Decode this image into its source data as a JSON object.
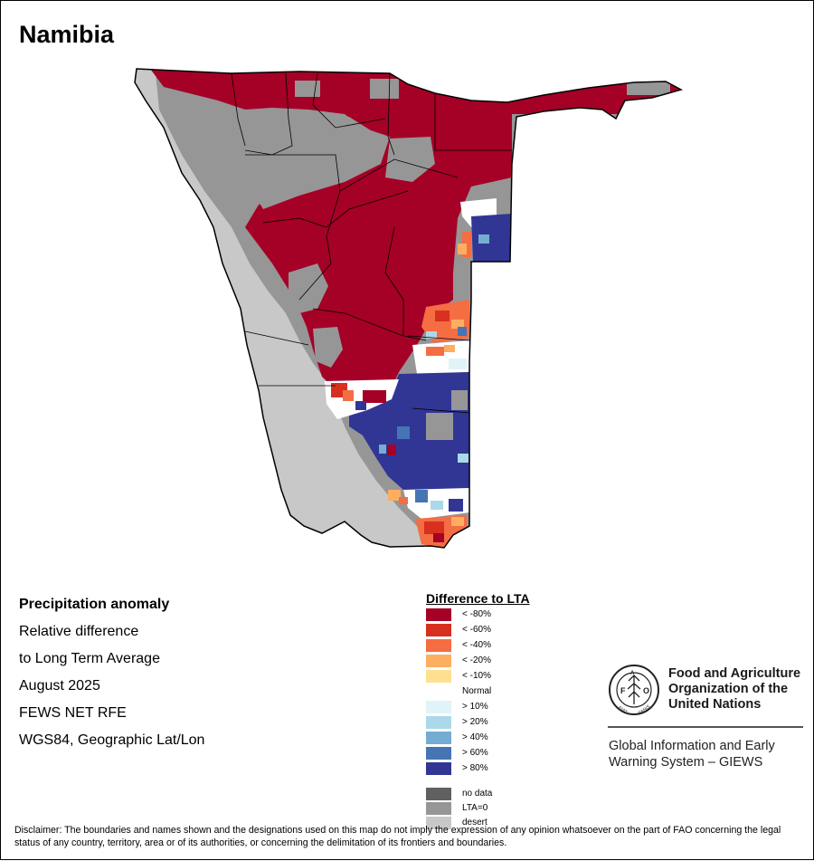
{
  "map": {
    "title": "Namibia",
    "info_lines": [
      "Precipitation anomaly",
      "Relative difference",
      "to Long Term Average",
      "August 2025",
      "FEWS NET RFE",
      "WGS84, Geographic Lat/Lon"
    ]
  },
  "legend": {
    "title": "Difference to LTA",
    "items": [
      {
        "label": "< -80%",
        "color": "#a50026"
      },
      {
        "label": "< -60%",
        "color": "#d7301f"
      },
      {
        "label": "< -40%",
        "color": "#f46d43"
      },
      {
        "label": "< -20%",
        "color": "#fdae61"
      },
      {
        "label": "< -10%",
        "color": "#fee090"
      },
      {
        "label": "Normal",
        "color": "#ffffff"
      },
      {
        "label": "> 10%",
        "color": "#e0f3f8"
      },
      {
        "label": "> 20%",
        "color": "#abd9e9"
      },
      {
        "label": "> 40%",
        "color": "#74add1"
      },
      {
        "label": "> 60%",
        "color": "#4575b4"
      },
      {
        "label": "> 80%",
        "color": "#313695"
      }
    ],
    "extra_items": [
      {
        "label": "no data",
        "color": "#606060"
      },
      {
        "label": "LTA=0",
        "color": "#969696"
      },
      {
        "label": "desert",
        "color": "#c8c8c8"
      }
    ]
  },
  "branding": {
    "org_name_lines": [
      "Food and Agriculture",
      "Organization of the",
      "United Nations"
    ],
    "system_lines": [
      "Global Information and Early",
      "Warning System – GIEWS"
    ],
    "logo_text": "FAO",
    "logo_motto": "FIAT PANIS"
  },
  "disclaimer": "Disclaimer: The boundaries and names shown and the designations used on this map do not imply the expression of any opinion whatsoever on the part of FAO concerning the legal status of any country, territory, area or of its authorities, or concerning the delimitation of its frontiers and boundaries."
}
